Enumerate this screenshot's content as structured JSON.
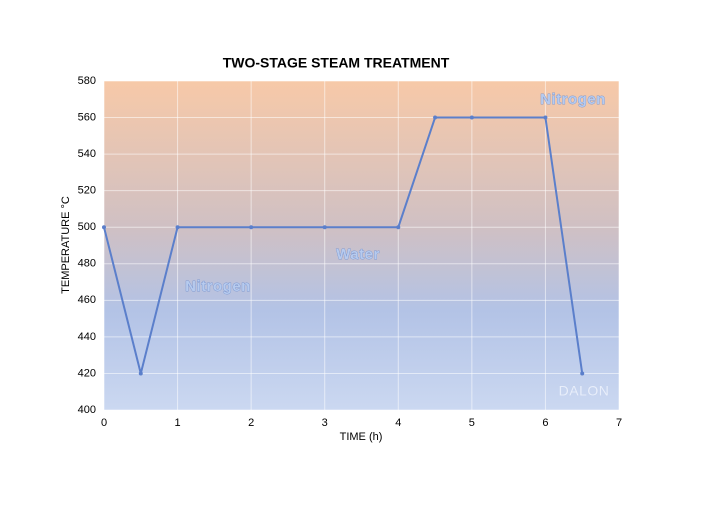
{
  "chart_data": {
    "type": "line",
    "title": "TWO-STAGE STEAM TREATMENT",
    "x_label": "TIME (h)",
    "y_label": "TEMPERATURE °C",
    "x": [
      0,
      0.5,
      1,
      2,
      3,
      4,
      4.5,
      5,
      6,
      6.5
    ],
    "series": [
      {
        "name": "Temperature",
        "color": "#5b7fcb",
        "values": [
          500,
          420,
          500,
          500,
          500,
          500,
          560,
          560,
          560,
          420
        ]
      }
    ],
    "xlim": [
      0,
      7
    ],
    "xticks": [
      0,
      1,
      2,
      3,
      4,
      5,
      6,
      7
    ],
    "ylim": [
      400,
      580
    ],
    "yticks": [
      400,
      420,
      440,
      460,
      480,
      500,
      520,
      540,
      560,
      580
    ],
    "grid": true,
    "annotations": [
      "Nitrogen",
      "Water",
      "Nitrogen",
      "DALON"
    ]
  }
}
